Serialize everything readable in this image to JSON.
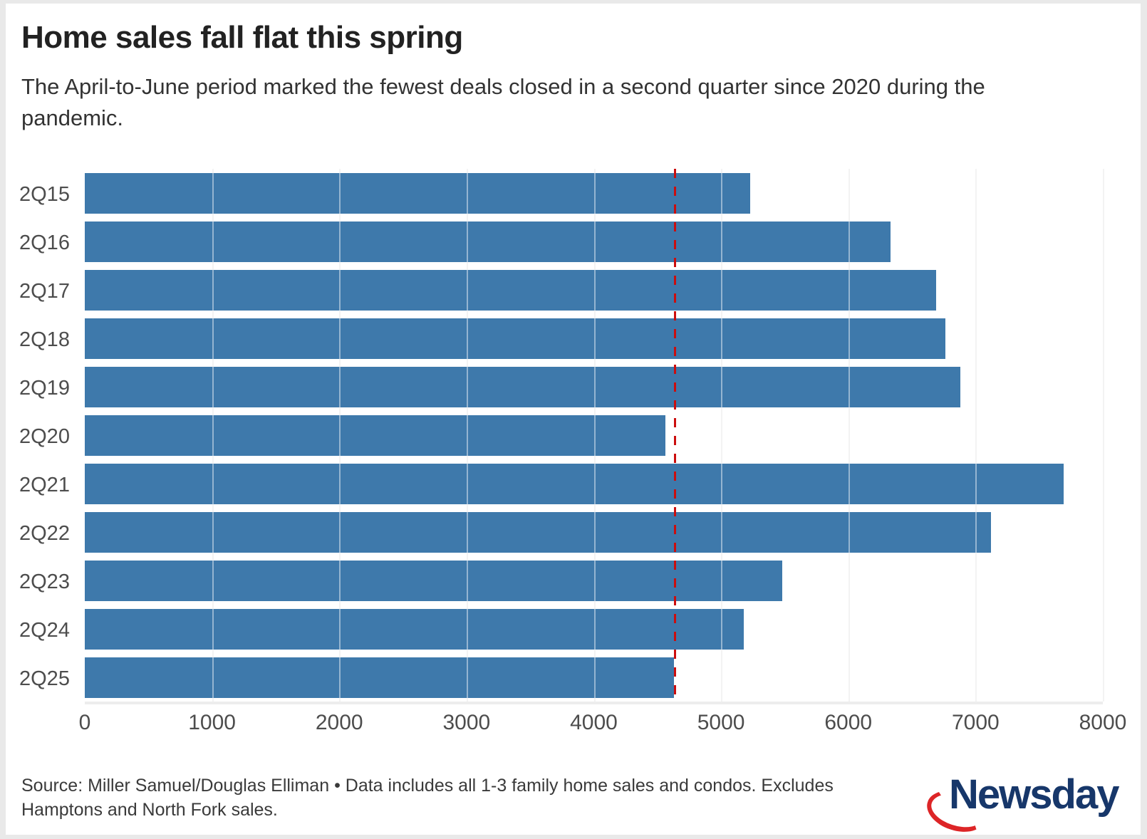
{
  "header": {
    "title": "Home sales fall flat this spring",
    "subtitle": "The April-to-June period marked the fewest deals closed in a second quarter since 2020 during the pandemic."
  },
  "chart_data": {
    "type": "bar",
    "orientation": "horizontal",
    "title": "Home sales fall flat this spring",
    "categories": [
      "2Q15",
      "2Q16",
      "2Q17",
      "2Q18",
      "2Q19",
      "2Q20",
      "2Q21",
      "2Q22",
      "2Q23",
      "2Q24",
      "2Q25"
    ],
    "values": [
      5230,
      6330,
      6690,
      6760,
      6880,
      4560,
      7690,
      7120,
      5480,
      5180,
      4630
    ],
    "xlabel": "",
    "ylabel": "",
    "xlim": [
      0,
      8000
    ],
    "x_ticks": [
      0,
      1000,
      2000,
      3000,
      4000,
      5000,
      6000,
      7000,
      8000
    ],
    "grid": true,
    "legend": false,
    "bar_color": "#3e79ab",
    "reference_line": {
      "value": 4630,
      "style": "dashed",
      "color": "#cb0e0e",
      "note": "marks the 2Q25 sales level"
    }
  },
  "footer": {
    "source": "Source: Miller Samuel/Douglas Elliman • Data includes all 1-3 family home sales and condos. Excludes Hamptons and North Fork sales.",
    "logo_text": "Newsday"
  },
  "colors": {
    "bar": "#3e79ab",
    "reference": "#cb0e0e",
    "grid": "#e9e9e9",
    "title_text": "#222222",
    "body_text": "#333333",
    "tick_text": "#4d4d4d",
    "logo_navy": "#17376a",
    "logo_red": "#dd2527",
    "frame": "#e9e9e9"
  }
}
